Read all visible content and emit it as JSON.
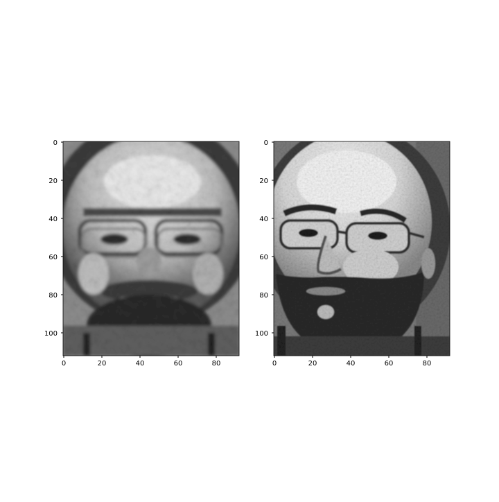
{
  "figure": {
    "background": "#ffffff",
    "panels": [
      {
        "name": "reconstructed-face",
        "image": "blurred grayscale face reconstruction",
        "x_ticks": [
          "0",
          "20",
          "40",
          "60",
          "80"
        ],
        "y_ticks": [
          "0",
          "20",
          "40",
          "60",
          "80",
          "100"
        ]
      },
      {
        "name": "original-face",
        "image": "grayscale face photo",
        "x_ticks": [
          "0",
          "20",
          "40",
          "60",
          "80"
        ],
        "y_ticks": [
          "0",
          "20",
          "40",
          "60",
          "80",
          "100"
        ]
      }
    ]
  },
  "chart_data": {
    "type": "heatmap",
    "x_range": [
      0,
      92
    ],
    "y_range": [
      0,
      112
    ],
    "y_inverted": true,
    "grid": false
  }
}
